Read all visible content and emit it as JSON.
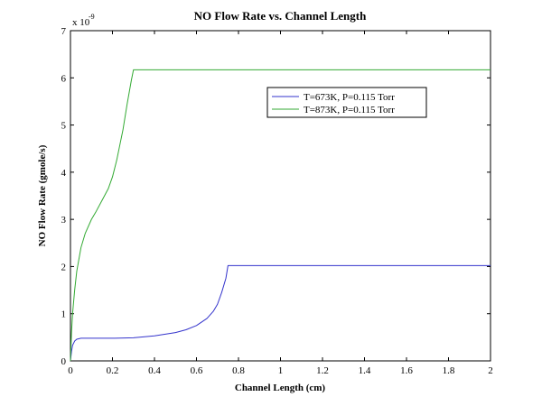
{
  "chart_data": {
    "type": "line",
    "title": "NO Flow Rate vs. Channel Length",
    "xlabel": "Channel Length (cm)",
    "ylabel": "NO Flow Rate (gmole/s)",
    "y_multiplier_label": "x 10",
    "y_multiplier_exponent": "-9",
    "xlim": [
      0,
      2
    ],
    "ylim": [
      0,
      7
    ],
    "x_ticks": [
      "0",
      "0.2",
      "0.4",
      "0.6",
      "0.8",
      "1",
      "1.2",
      "1.4",
      "1.6",
      "1.8",
      "2"
    ],
    "y_ticks": [
      "0",
      "1",
      "2",
      "3",
      "4",
      "5",
      "6",
      "7"
    ],
    "grid": false,
    "legend_position": "upper-right (inside plot)",
    "series": [
      {
        "name": "T=673K, P=0.115 Torr",
        "color": "#3333cc",
        "x": [
          0,
          0.005,
          0.01,
          0.02,
          0.03,
          0.05,
          0.08,
          0.1,
          0.2,
          0.3,
          0.4,
          0.5,
          0.55,
          0.6,
          0.65,
          0.68,
          0.7,
          0.72,
          0.74,
          0.75,
          0.76,
          0.8,
          1.0,
          1.5,
          2.0
        ],
        "y": [
          0,
          0.2,
          0.33,
          0.42,
          0.46,
          0.48,
          0.48,
          0.48,
          0.48,
          0.49,
          0.53,
          0.6,
          0.66,
          0.75,
          0.9,
          1.05,
          1.2,
          1.45,
          1.75,
          2.02,
          2.02,
          2.02,
          2.02,
          2.02,
          2.02
        ]
      },
      {
        "name": "T=873K, P=0.115 Torr",
        "color": "#33aa33",
        "x": [
          0,
          0.005,
          0.01,
          0.02,
          0.03,
          0.05,
          0.07,
          0.1,
          0.12,
          0.15,
          0.18,
          0.2,
          0.22,
          0.25,
          0.27,
          0.29,
          0.3,
          0.31,
          0.35,
          0.5,
          1.0,
          1.5,
          2.0
        ],
        "y": [
          0,
          0.6,
          1.0,
          1.5,
          1.9,
          2.4,
          2.7,
          3.0,
          3.15,
          3.4,
          3.65,
          3.9,
          4.25,
          4.9,
          5.45,
          5.95,
          6.17,
          6.17,
          6.17,
          6.17,
          6.17,
          6.17,
          6.17
        ]
      }
    ]
  }
}
